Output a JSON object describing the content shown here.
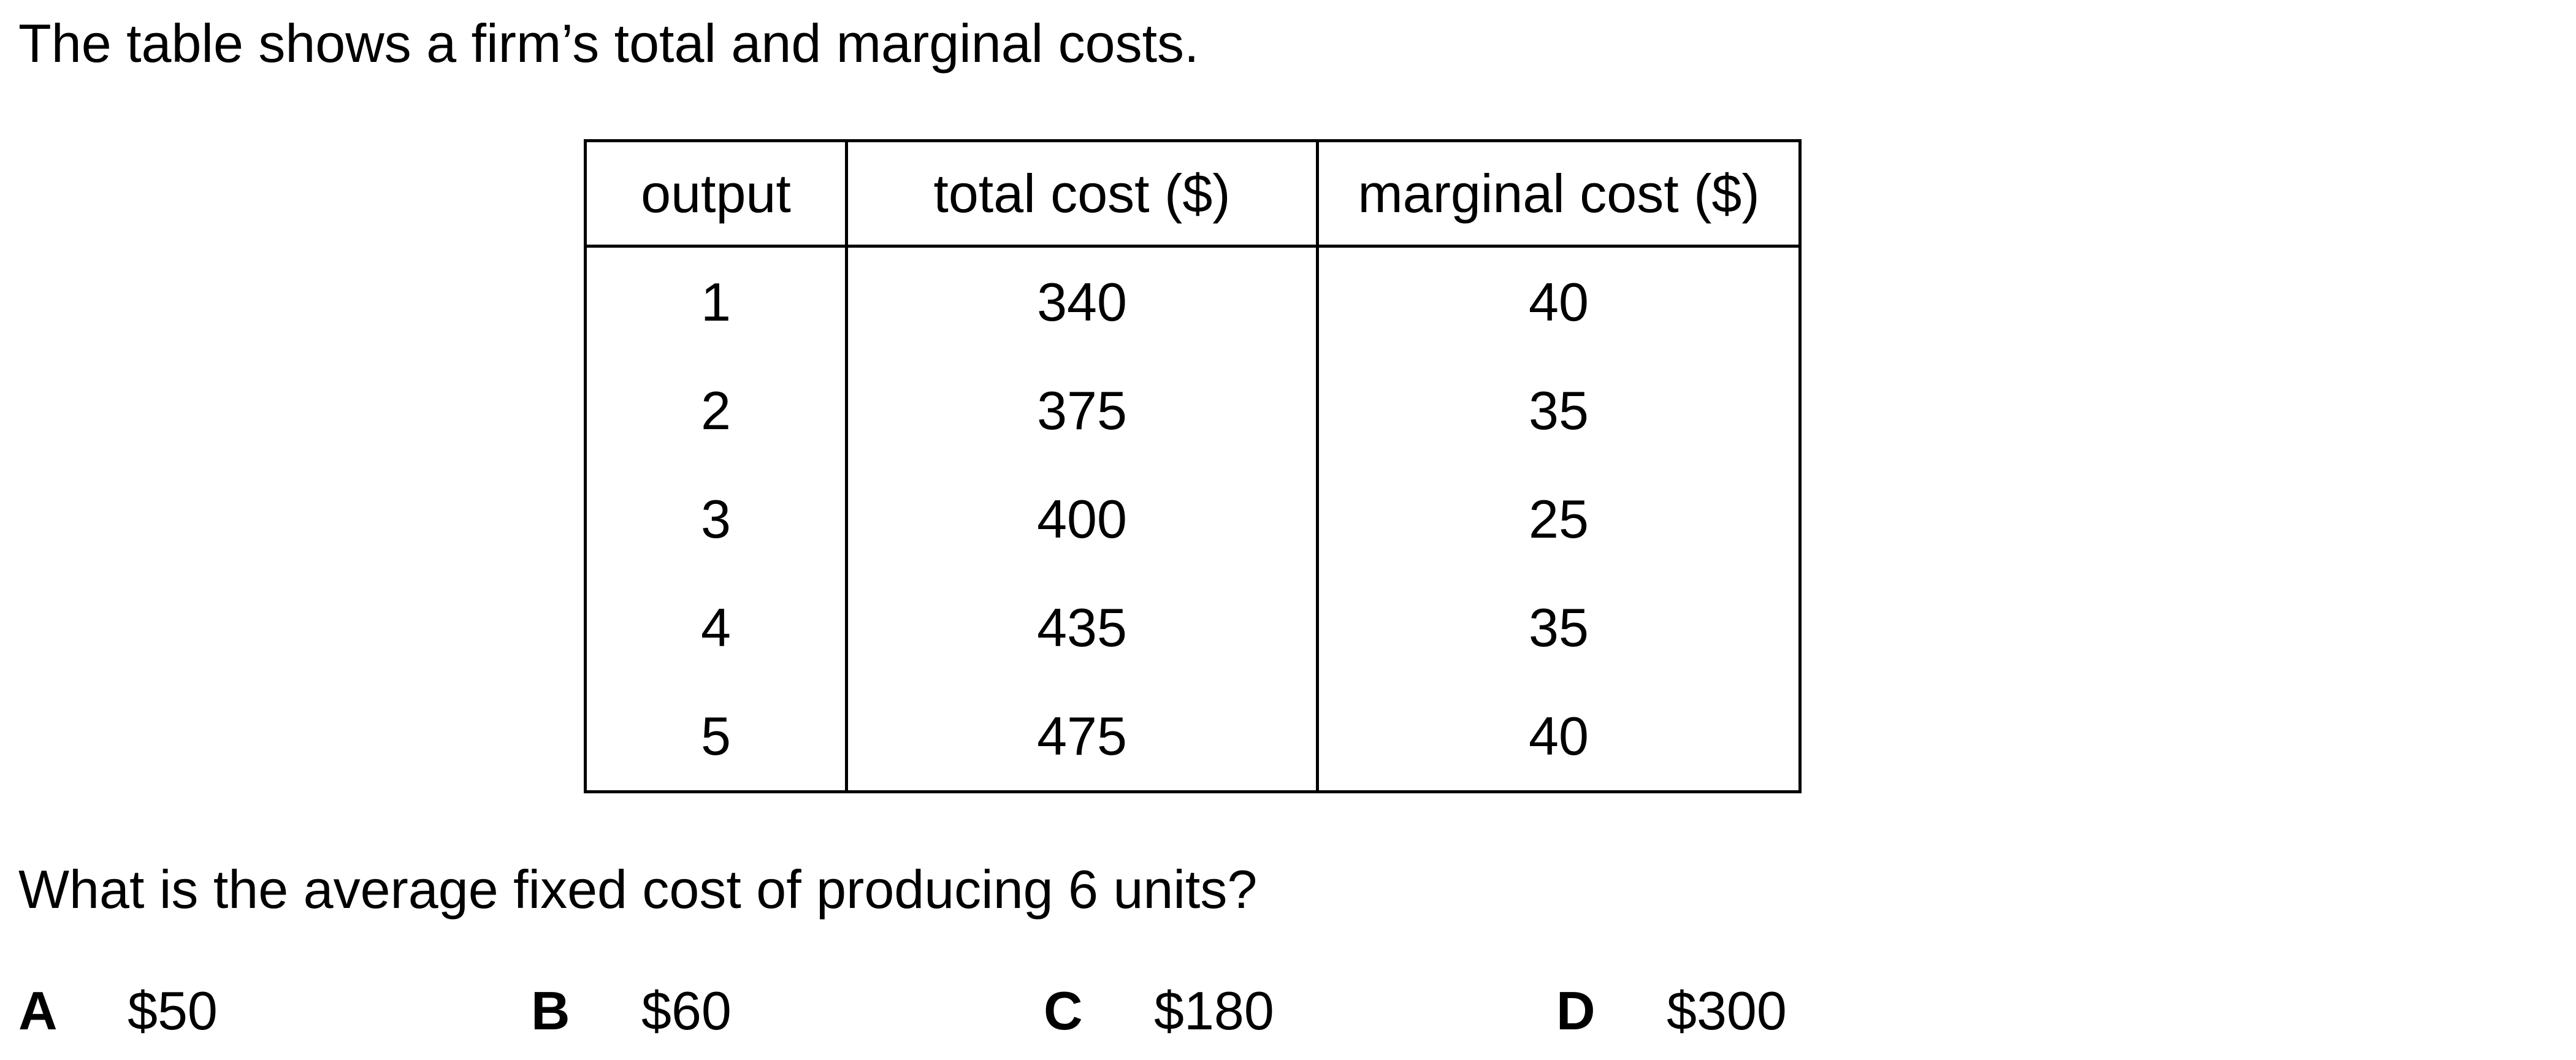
{
  "intro": "The table shows a firm’s total and marginal costs.",
  "table": {
    "headers": [
      "output",
      "total cost ($)",
      "marginal cost ($)"
    ],
    "rows": [
      [
        "1",
        "340",
        "40"
      ],
      [
        "2",
        "375",
        "35"
      ],
      [
        "3",
        "400",
        "25"
      ],
      [
        "4",
        "435",
        "35"
      ],
      [
        "5",
        "475",
        "40"
      ]
    ]
  },
  "question": "What is the average fixed cost of producing 6 units?",
  "options": [
    {
      "letter": "A",
      "value": "$50"
    },
    {
      "letter": "B",
      "value": "$60"
    },
    {
      "letter": "C",
      "value": "$180"
    },
    {
      "letter": "D",
      "value": "$300"
    }
  ]
}
